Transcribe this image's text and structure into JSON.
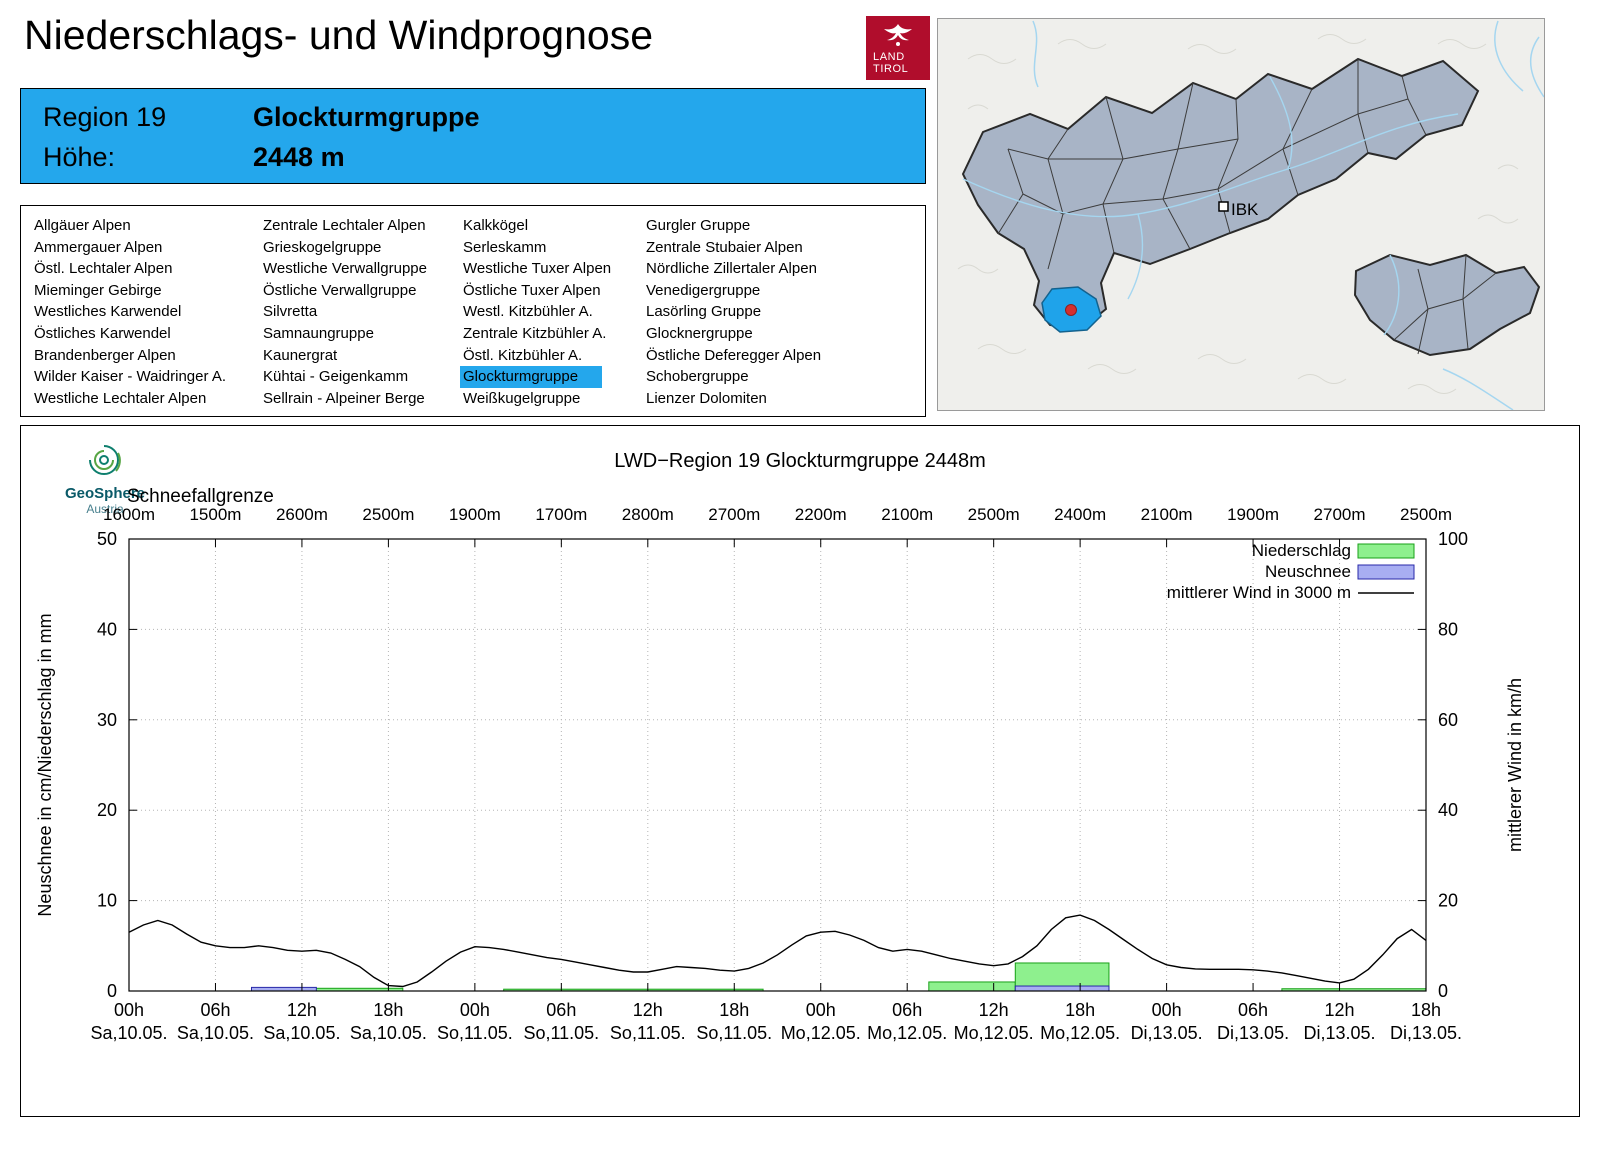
{
  "header": {
    "title": "Niederschlags- und Windprognose",
    "logo": {
      "line1": "LAND",
      "line2": "TIROL"
    }
  },
  "region_box": {
    "region_label": "Region 19",
    "region_name": "Glockturmgruppe",
    "altitude_label": "Höhe:",
    "altitude_value": "2448 m"
  },
  "region_list": {
    "selected": "Glockturmgruppe",
    "columns": [
      [
        "Allgäuer Alpen",
        "Ammergauer Alpen",
        "Östl. Lechtaler Alpen",
        "Mieminger Gebirge",
        "Westliches Karwendel",
        "Östliches Karwendel",
        "Brandenberger Alpen",
        "Wilder Kaiser - Waidringer A.",
        "Westliche Lechtaler Alpen"
      ],
      [
        "Zentrale Lechtaler Alpen",
        "Grieskogelgruppe",
        "Westliche Verwallgruppe",
        "Östliche Verwallgruppe",
        "Silvretta",
        "Samnaungruppe",
        "Kaunergrat",
        "Kühtai - Geigenkamm",
        "Sellrain - Alpeiner Berge"
      ],
      [
        "Kalkkögel",
        "Serleskamm",
        "Westliche Tuxer Alpen",
        "Östliche Tuxer Alpen",
        "Westl. Kitzbühler A.",
        "Zentrale Kitzbühler A.",
        "Östl. Kitzbühler A.",
        "Glockturmgruppe",
        "Weißkugelgruppe"
      ],
      [
        "Gurgler Gruppe",
        "Zentrale Stubaier Alpen",
        "Nördliche Zillertaler Alpen",
        "Venedigergruppe",
        "Lasörling Gruppe",
        "Glocknergruppe",
        "Östliche Deferegger Alpen",
        "Schobergruppe",
        "Lienzer Dolomiten"
      ]
    ]
  },
  "map": {
    "city_label": "IBK",
    "highlight_color": "#1fa3ea",
    "region_fill": "#a8b4c6"
  },
  "geosphere": {
    "name": "GeoSphere",
    "sub": "Austria"
  },
  "chart_data": {
    "type": "mixed",
    "title": "LWD−Region 19 Glockturmgruppe 2448m",
    "snowline_label": "Schneefallgrenze",
    "snowline_values": [
      "1600m",
      "1500m",
      "2600m",
      "2500m",
      "1900m",
      "1700m",
      "2800m",
      "2700m",
      "2200m",
      "2100m",
      "2500m",
      "2400m",
      "2100m",
      "1900m",
      "2700m",
      "2500m"
    ],
    "x_tick_hours": [
      "00h",
      "06h",
      "12h",
      "18h",
      "00h",
      "06h",
      "12h",
      "18h",
      "00h",
      "06h",
      "12h",
      "18h",
      "00h",
      "06h",
      "12h",
      "18h"
    ],
    "x_tick_dates": [
      "Sa,10.05.",
      "Sa,10.05.",
      "Sa,10.05.",
      "Sa,10.05.",
      "So,11.05.",
      "So,11.05.",
      "So,11.05.",
      "So,11.05.",
      "Mo,12.05.",
      "Mo,12.05.",
      "Mo,12.05.",
      "Mo,12.05.",
      "Di,13.05.",
      "Di,13.05.",
      "Di,13.05.",
      "Di,13.05."
    ],
    "x_range_hours": [
      0,
      90
    ],
    "ylabel_left": "Neuschnee in cm/Niederschlag in mm",
    "ylabel_right": "mittlerer Wind in km/h",
    "ylim_left": [
      0,
      50
    ],
    "ylim_right": [
      0,
      100
    ],
    "y_ticks_left": [
      0,
      10,
      20,
      30,
      40,
      50
    ],
    "y_ticks_right": [
      0,
      20,
      40,
      60,
      80,
      100
    ],
    "grid": true,
    "legend_position": "top-right",
    "legend": [
      {
        "label": "Niederschlag",
        "type": "box",
        "fill": "#8ef08e",
        "stroke": "#18a018"
      },
      {
        "label": "Neuschnee",
        "type": "box",
        "fill": "#a8aef2",
        "stroke": "#2828a8"
      },
      {
        "label": "mittlerer Wind in 3000 m",
        "type": "line",
        "stroke": "#000000"
      }
    ],
    "wind_kmh": [
      [
        0,
        13
      ],
      [
        1,
        14.6
      ],
      [
        2,
        15.6
      ],
      [
        3,
        14.6
      ],
      [
        4,
        12.6
      ],
      [
        5,
        10.8
      ],
      [
        6,
        10
      ],
      [
        7,
        9.6
      ],
      [
        8,
        9.6
      ],
      [
        9,
        10
      ],
      [
        10,
        9.6
      ],
      [
        11,
        9
      ],
      [
        12,
        8.8
      ],
      [
        13,
        9
      ],
      [
        14,
        8.4
      ],
      [
        15,
        7
      ],
      [
        16,
        5.4
      ],
      [
        17,
        3
      ],
      [
        18,
        1.2
      ],
      [
        19,
        1
      ],
      [
        20,
        2
      ],
      [
        21,
        4.2
      ],
      [
        22,
        6.6
      ],
      [
        23,
        8.6
      ],
      [
        24,
        9.8
      ],
      [
        25,
        9.6
      ],
      [
        26,
        9.2
      ],
      [
        27,
        8.6
      ],
      [
        28,
        8
      ],
      [
        29,
        7.4
      ],
      [
        30,
        7
      ],
      [
        31,
        6.4
      ],
      [
        32,
        5.8
      ],
      [
        33,
        5.2
      ],
      [
        34,
        4.6
      ],
      [
        35,
        4.2
      ],
      [
        36,
        4.2
      ],
      [
        37,
        4.8
      ],
      [
        38,
        5.4
      ],
      [
        39,
        5.2
      ],
      [
        40,
        5
      ],
      [
        41,
        4.6
      ],
      [
        42,
        4.4
      ],
      [
        43,
        5
      ],
      [
        44,
        6.2
      ],
      [
        45,
        8
      ],
      [
        46,
        10.2
      ],
      [
        47,
        12.2
      ],
      [
        48,
        13
      ],
      [
        49,
        13.2
      ],
      [
        50,
        12.4
      ],
      [
        51,
        11.2
      ],
      [
        52,
        9.6
      ],
      [
        53,
        8.8
      ],
      [
        54,
        9.2
      ],
      [
        55,
        8.8
      ],
      [
        56,
        8
      ],
      [
        57,
        7.2
      ],
      [
        58,
        6.6
      ],
      [
        59,
        6
      ],
      [
        60,
        5.6
      ],
      [
        61,
        6
      ],
      [
        62,
        7.6
      ],
      [
        63,
        10
      ],
      [
        64,
        13.6
      ],
      [
        65,
        16.2
      ],
      [
        66,
        16.8
      ],
      [
        67,
        15.6
      ],
      [
        68,
        13.6
      ],
      [
        69,
        11.4
      ],
      [
        70,
        9.2
      ],
      [
        71,
        7.2
      ],
      [
        72,
        5.8
      ],
      [
        73,
        5.2
      ],
      [
        74,
        4.9
      ],
      [
        75,
        4.8
      ],
      [
        76,
        4.8
      ],
      [
        77,
        4.8
      ],
      [
        78,
        4.7
      ],
      [
        79,
        4.4
      ],
      [
        80,
        4
      ],
      [
        81,
        3.4
      ],
      [
        82,
        2.8
      ],
      [
        83,
        2.2
      ],
      [
        84,
        1.8
      ],
      [
        85,
        2.6
      ],
      [
        86,
        4.8
      ],
      [
        87,
        8
      ],
      [
        88,
        11.6
      ],
      [
        89,
        13.6
      ],
      [
        90,
        11.2
      ]
    ],
    "precip_bars_mm": [
      {
        "from": 8.5,
        "to": 19,
        "mm": 0.3
      },
      {
        "from": 26,
        "to": 44,
        "mm": 0.2
      },
      {
        "from": 55.5,
        "to": 61.5,
        "mm": 1.0
      },
      {
        "from": 61.5,
        "to": 68,
        "mm": 3.1
      },
      {
        "from": 80,
        "to": 90,
        "mm": 0.25
      }
    ],
    "snow_bars_cm": [
      {
        "from": 8.5,
        "to": 13,
        "cm": 0.4
      },
      {
        "from": 61.5,
        "to": 68,
        "cm": 0.55
      }
    ]
  }
}
